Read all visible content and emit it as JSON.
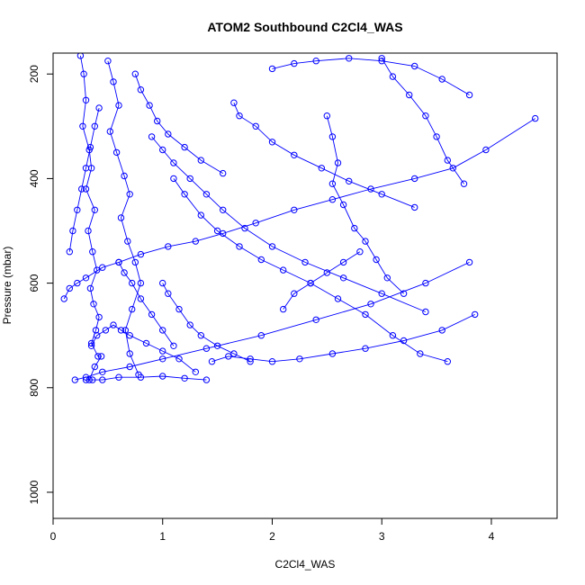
{
  "chart_data": {
    "type": "line",
    "title": "ATOM2 Southbound C2Cl4_WAS",
    "xlabel": "C2Cl4_WAS",
    "ylabel": "Pressure (mbar)",
    "xlim": [
      0,
      4.6
    ],
    "ylim": [
      1050,
      160
    ],
    "x_ticks": [
      0,
      1,
      2,
      3,
      4
    ],
    "y_ticks": [
      200,
      400,
      600,
      800,
      1000
    ],
    "grid": false,
    "marker": "open-circle",
    "colors": {
      "series": "#0000ff",
      "axis": "#000000"
    },
    "series": [
      {
        "x": [
          0.25,
          0.28,
          0.3,
          0.27,
          0.33,
          0.35,
          0.3,
          0.38,
          0.32,
          0.36,
          0.4,
          0.34,
          0.37,
          0.42,
          0.39,
          0.35,
          0.41,
          0.44,
          0.38,
          0.33,
          0.36
        ],
        "y": [
          165,
          200,
          250,
          300,
          345,
          380,
          420,
          460,
          500,
          540,
          575,
          610,
          640,
          665,
          690,
          715,
          740,
          740,
          760,
          785,
          785
        ]
      },
      {
        "x": [
          0.1,
          0.15,
          0.22,
          0.3,
          0.45,
          0.6,
          0.8,
          1.05,
          1.3,
          1.55,
          1.85,
          2.2,
          2.55,
          2.9,
          3.3,
          3.65,
          3.95,
          4.4
        ],
        "y": [
          630,
          610,
          600,
          590,
          570,
          560,
          545,
          530,
          520,
          505,
          485,
          460,
          440,
          420,
          400,
          380,
          345,
          285
        ]
      },
      {
        "x": [
          0.5,
          0.55,
          0.6,
          0.52,
          0.58,
          0.65,
          0.7,
          0.62,
          0.68,
          0.75,
          0.8,
          0.72,
          0.66,
          0.7,
          0.78
        ],
        "y": [
          175,
          215,
          260,
          310,
          350,
          395,
          430,
          475,
          520,
          560,
          600,
          650,
          690,
          735,
          775
        ]
      },
      {
        "x": [
          0.2,
          0.3,
          0.45,
          0.7,
          1.0,
          1.4,
          1.9,
          2.4,
          2.9,
          3.4,
          3.8
        ],
        "y": [
          785,
          780,
          770,
          760,
          745,
          725,
          700,
          670,
          640,
          600,
          560
        ]
      },
      {
        "x": [
          1.1,
          1.2,
          1.35,
          1.5,
          1.7,
          1.9,
          2.1,
          2.35,
          2.6,
          2.85,
          3.1,
          3.35,
          3.6
        ],
        "y": [
          400,
          430,
          470,
          500,
          530,
          555,
          575,
          600,
          630,
          660,
          700,
          735,
          750
        ]
      },
      {
        "x": [
          0.9,
          1.0,
          1.1,
          1.25,
          1.4,
          1.55,
          1.75,
          2.0,
          2.3,
          2.65,
          3.0,
          3.4
        ],
        "y": [
          320,
          345,
          370,
          400,
          430,
          460,
          495,
          530,
          560,
          590,
          620,
          655
        ]
      },
      {
        "x": [
          1.45,
          1.6,
          1.8,
          2.0,
          2.25,
          2.55,
          2.85,
          3.2,
          3.55,
          3.85
        ],
        "y": [
          750,
          740,
          745,
          750,
          745,
          735,
          725,
          710,
          690,
          660
        ]
      },
      {
        "x": [
          2.5,
          2.55,
          2.6,
          2.55,
          2.65,
          2.75,
          2.85,
          2.95,
          3.05,
          3.2
        ],
        "y": [
          280,
          320,
          370,
          410,
          450,
          495,
          520,
          555,
          590,
          620
        ]
      },
      {
        "x": [
          1.65,
          1.7,
          1.85,
          2.0,
          2.2,
          2.45,
          2.7,
          3.0,
          3.3
        ],
        "y": [
          255,
          280,
          300,
          330,
          355,
          380,
          405,
          430,
          455
        ]
      },
      {
        "x": [
          0.35,
          0.4,
          0.48,
          0.55,
          0.62,
          0.7,
          0.85,
          1.0,
          1.15,
          1.3
        ],
        "y": [
          720,
          700,
          690,
          680,
          690,
          700,
          715,
          730,
          745,
          770
        ]
      },
      {
        "x": [
          0.15,
          0.18,
          0.22,
          0.26,
          0.3,
          0.34,
          0.38,
          0.42
        ],
        "y": [
          540,
          500,
          460,
          420,
          380,
          340,
          300,
          265
        ]
      },
      {
        "x": [
          3.0,
          3.1,
          3.25,
          3.4,
          3.5,
          3.6,
          3.75
        ],
        "y": [
          170,
          205,
          240,
          280,
          320,
          365,
          410
        ]
      },
      {
        "x": [
          0.3,
          0.45,
          0.6,
          0.8,
          1.0,
          1.2,
          1.4
        ],
        "y": [
          785,
          785,
          780,
          780,
          778,
          782,
          785
        ]
      },
      {
        "x": [
          2.0,
          2.2,
          2.4,
          2.7,
          3.0,
          3.3,
          3.55,
          3.8
        ],
        "y": [
          190,
          180,
          175,
          170,
          175,
          185,
          210,
          240
        ]
      },
      {
        "x": [
          1.0,
          1.05,
          1.15,
          1.25,
          1.35,
          1.5,
          1.65,
          1.8
        ],
        "y": [
          600,
          620,
          650,
          680,
          700,
          720,
          735,
          750
        ]
      },
      {
        "x": [
          0.6,
          0.65,
          0.72,
          0.8,
          0.9,
          1.0,
          1.1
        ],
        "y": [
          560,
          580,
          600,
          630,
          660,
          690,
          720
        ]
      },
      {
        "x": [
          2.1,
          2.2,
          2.35,
          2.5,
          2.65,
          2.8
        ],
        "y": [
          650,
          620,
          600,
          580,
          560,
          540
        ]
      },
      {
        "x": [
          0.75,
          0.8,
          0.88,
          0.95,
          1.05,
          1.2,
          1.35,
          1.55
        ],
        "y": [
          200,
          230,
          260,
          290,
          315,
          340,
          365,
          390
        ]
      }
    ]
  }
}
